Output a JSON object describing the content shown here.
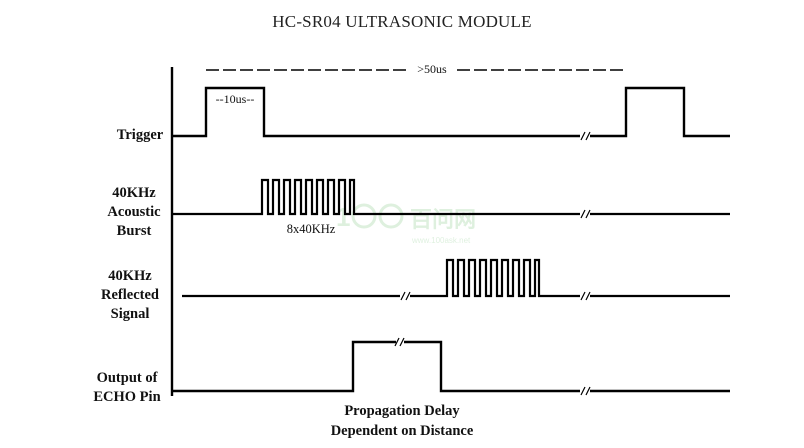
{
  "title": "HC-SR04 ULTRASONIC MODULE",
  "labels": {
    "trigger": "Trigger",
    "burst": [
      "40KHz",
      "Acoustic",
      "Burst"
    ],
    "reflected": [
      "40KHz",
      "Reflected",
      "Signal"
    ],
    "echo": [
      "Output of",
      "ECHO Pin"
    ]
  },
  "annotations": {
    "period": ">50us",
    "pulse_width": "--10us--",
    "burst_cycles": "8x40KHz"
  },
  "footer": [
    "Propagation Delay",
    "Dependent on Distance"
  ],
  "watermark": "百问网 www.100ask.net",
  "colors": {
    "line": "#000000",
    "text": "#111111"
  }
}
